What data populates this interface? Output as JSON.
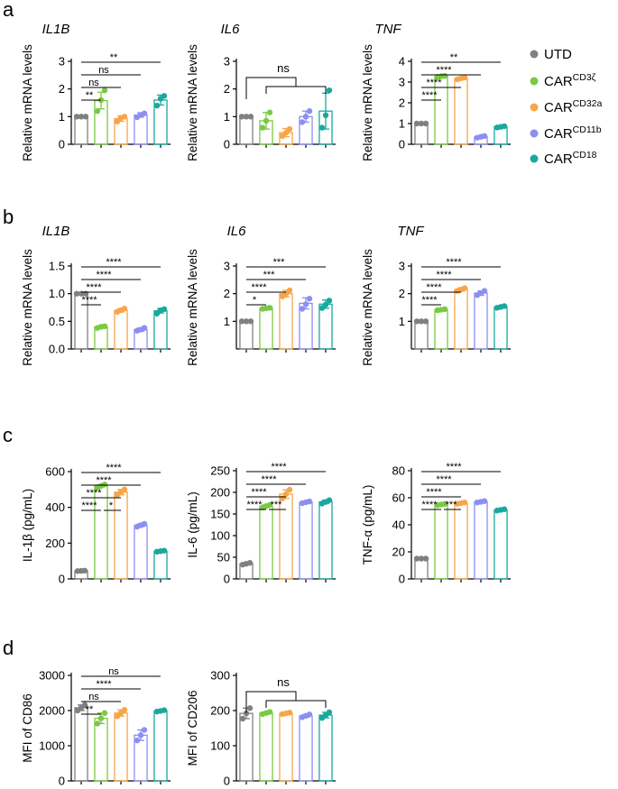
{
  "panel_letters": [
    "a",
    "b",
    "c",
    "d"
  ],
  "legend": [
    {
      "label": "UTD",
      "sup": "",
      "color": "#808080"
    },
    {
      "label": "CAR",
      "sup": "CD3ζ",
      "color": "#7ac943"
    },
    {
      "label": "CAR",
      "sup": "CD32a",
      "color": "#f7a54a"
    },
    {
      "label": "CAR",
      "sup": "CD11b",
      "color": "#8c8ff2"
    },
    {
      "label": "CAR",
      "sup": "CD18",
      "color": "#1aa89e"
    }
  ],
  "chart_data": [
    {
      "id": "a1",
      "type": "bar",
      "title": "IL1B",
      "ylabel": "Relative mRNA levels",
      "ylim": [
        0,
        3
      ],
      "yticks": [
        0,
        1,
        2,
        3
      ],
      "groups": [
        "UTD",
        "CAR-CD3ζ",
        "CAR-CD32a",
        "CAR-CD11b",
        "CAR-CD18"
      ],
      "values": [
        1.0,
        1.58,
        0.93,
        1.06,
        1.6
      ],
      "errors": [
        0.0,
        0.3,
        0.1,
        0.08,
        0.18
      ],
      "points": [
        [
          1,
          1,
          1
        ],
        [
          1.2,
          1.6,
          1.95
        ],
        [
          0.82,
          0.95,
          1.0
        ],
        [
          0.98,
          1.06,
          1.12
        ],
        [
          1.4,
          1.65,
          1.75
        ]
      ],
      "comparisons": [
        {
          "label": "**",
          "target": 4
        },
        {
          "label": "ns",
          "target": 3
        },
        {
          "label": "ns",
          "target": 2
        },
        {
          "label": "**",
          "target": 1
        }
      ]
    },
    {
      "id": "a2",
      "type": "bar",
      "title": "IL6",
      "ylabel": "Relative mRNA levels",
      "ylim": [
        0,
        3
      ],
      "yticks": [
        0,
        1,
        2,
        3
      ],
      "groups": [
        "UTD",
        "CAR-CD3ζ",
        "CAR-CD32a",
        "CAR-CD11b",
        "CAR-CD18"
      ],
      "values": [
        1.0,
        0.85,
        0.42,
        1.0,
        1.2
      ],
      "errors": [
        0.0,
        0.3,
        0.15,
        0.2,
        0.65
      ],
      "points": [
        [
          1,
          1,
          1
        ],
        [
          0.6,
          0.85,
          1.15
        ],
        [
          0.3,
          0.42,
          0.55
        ],
        [
          0.8,
          1.0,
          1.2
        ],
        [
          0.6,
          1.05,
          1.95
        ]
      ],
      "bracket": {
        "label": "ns"
      }
    },
    {
      "id": "a3",
      "type": "bar",
      "title": "TNF",
      "ylabel": "Relative mRNA levels",
      "ylim": [
        0,
        4
      ],
      "yticks": [
        0,
        1,
        2,
        3,
        4
      ],
      "groups": [
        "UTD",
        "CAR-CD3ζ",
        "CAR-CD32a",
        "CAR-CD11b",
        "CAR-CD18"
      ],
      "values": [
        1.0,
        3.28,
        3.18,
        0.36,
        0.84
      ],
      "errors": [
        0.0,
        0.03,
        0.05,
        0.05,
        0.04
      ],
      "points": [
        [
          1,
          1,
          1
        ],
        [
          3.25,
          3.28,
          3.3
        ],
        [
          3.13,
          3.18,
          3.22
        ],
        [
          0.32,
          0.36,
          0.4
        ],
        [
          0.81,
          0.84,
          0.87
        ]
      ],
      "comparisons": [
        {
          "label": "**",
          "target": 4
        },
        {
          "label": "****",
          "target": 3
        },
        {
          "label": "****",
          "target": 2
        },
        {
          "label": "****",
          "target": 1
        }
      ]
    },
    {
      "id": "b1",
      "type": "bar",
      "title": "IL1B",
      "ylabel": "Relative mRNA levels",
      "ylim": [
        0,
        1.5
      ],
      "yticks": [
        0.0,
        0.5,
        1.0,
        1.5
      ],
      "decimals": 1,
      "groups": [
        "UTD",
        "CAR-CD3ζ",
        "CAR-CD32a",
        "CAR-CD11b",
        "CAR-CD18"
      ],
      "values": [
        1.0,
        0.4,
        0.7,
        0.35,
        0.69
      ],
      "errors": [
        0.0,
        0.02,
        0.03,
        0.03,
        0.04
      ],
      "points": [
        [
          1,
          1,
          1
        ],
        [
          0.38,
          0.4,
          0.41
        ],
        [
          0.67,
          0.7,
          0.73
        ],
        [
          0.33,
          0.35,
          0.38
        ],
        [
          0.64,
          0.7,
          0.72
        ]
      ],
      "comparisons": [
        {
          "label": "****",
          "target": 4
        },
        {
          "label": "****",
          "target": 3
        },
        {
          "label": "****",
          "target": 2
        },
        {
          "label": "****",
          "target": 1
        }
      ]
    },
    {
      "id": "b2",
      "type": "bar",
      "title": "IL6",
      "ylabel": "Relative mRNA levels",
      "ylim": [
        0,
        3
      ],
      "yticks": [
        1,
        2,
        3
      ],
      "groups": [
        "UTD",
        "CAR-CD3ζ",
        "CAR-CD32a",
        "CAR-CD11b",
        "CAR-CD18"
      ],
      "values": [
        1.0,
        1.47,
        2.0,
        1.65,
        1.62
      ],
      "errors": [
        0.0,
        0.03,
        0.12,
        0.2,
        0.15
      ],
      "points": [
        [
          1,
          1,
          1
        ],
        [
          1.45,
          1.47,
          1.49
        ],
        [
          1.9,
          2.0,
          2.12
        ],
        [
          1.45,
          1.62,
          1.82
        ],
        [
          1.48,
          1.6,
          1.75
        ]
      ],
      "comparisons": [
        {
          "label": "***",
          "target": 4
        },
        {
          "label": "***",
          "target": 3
        },
        {
          "label": "****",
          "target": 2
        },
        {
          "label": "*",
          "target": 1
        }
      ]
    },
    {
      "id": "b3",
      "type": "bar",
      "title": "TNF",
      "ylabel": "Relative mRNA levels",
      "ylim": [
        0,
        3
      ],
      "yticks": [
        1,
        2,
        3
      ],
      "groups": [
        "UTD",
        "CAR-CD3ζ",
        "CAR-CD32a",
        "CAR-CD11b",
        "CAR-CD18"
      ],
      "values": [
        1.0,
        1.42,
        2.15,
        2.02,
        1.52
      ],
      "errors": [
        0.0,
        0.03,
        0.06,
        0.08,
        0.04
      ],
      "points": [
        [
          1,
          1,
          1
        ],
        [
          1.4,
          1.42,
          1.44
        ],
        [
          2.1,
          2.15,
          2.2
        ],
        [
          1.95,
          2.02,
          2.1
        ],
        [
          1.49,
          1.52,
          1.55
        ]
      ],
      "comparisons": [
        {
          "label": "****",
          "target": 4
        },
        {
          "label": "****",
          "target": 3
        },
        {
          "label": "****",
          "target": 2
        },
        {
          "label": "****",
          "target": 1
        }
      ]
    },
    {
      "id": "c1",
      "type": "bar",
      "title": "",
      "ylabel": "IL-1β (pg/mL)",
      "ylim": [
        0,
        600
      ],
      "yticks": [
        0,
        200,
        400,
        600
      ],
      "groups": [
        "UTD",
        "CAR-CD3ζ",
        "CAR-CD32a",
        "CAR-CD11b",
        "CAR-CD18"
      ],
      "values": [
        45,
        520,
        485,
        300,
        155
      ],
      "errors": [
        2,
        6,
        15,
        8,
        3
      ],
      "points": [
        [
          44,
          45,
          46
        ],
        [
          512,
          520,
          528
        ],
        [
          470,
          485,
          500
        ],
        [
          292,
          300,
          308
        ],
        [
          152,
          155,
          158
        ]
      ],
      "comparisons": [
        {
          "label": "****",
          "target": 4
        },
        {
          "label": "****",
          "target": 3
        },
        {
          "label": "****",
          "target": 2
        },
        {
          "label": "****",
          "target": 1
        }
      ],
      "extra": {
        "label": "*",
        "from": 1,
        "to": 2
      }
    },
    {
      "id": "c2",
      "type": "bar",
      "title": "",
      "ylabel": "IL-6 (pg/mL)",
      "ylim": [
        0,
        250
      ],
      "yticks": [
        0,
        50,
        100,
        150,
        200,
        250
      ],
      "groups": [
        "UTD",
        "CAR-CD3ζ",
        "CAR-CD32a",
        "CAR-CD11b",
        "CAR-CD18"
      ],
      "values": [
        35,
        168,
        196,
        177,
        178
      ],
      "errors": [
        2,
        3,
        10,
        2,
        4
      ],
      "points": [
        [
          33,
          35,
          37
        ],
        [
          165,
          168,
          171
        ],
        [
          186,
          196,
          206
        ],
        [
          175,
          177,
          179
        ],
        [
          174,
          178,
          182
        ]
      ],
      "comparisons": [
        {
          "label": "****",
          "target": 4
        },
        {
          "label": "****",
          "target": 3
        },
        {
          "label": "****",
          "target": 2
        },
        {
          "label": "****",
          "target": 1
        }
      ],
      "extra": {
        "label": "***",
        "from": 1,
        "to": 2
      }
    },
    {
      "id": "c3",
      "type": "bar",
      "title": "",
      "ylabel": "TNF-α (pg/mL)",
      "ylim": [
        0,
        80
      ],
      "yticks": [
        0,
        20,
        40,
        60,
        80
      ],
      "groups": [
        "UTD",
        "CAR-CD3ζ",
        "CAR-CD32a",
        "CAR-CD11b",
        "CAR-CD18"
      ],
      "values": [
        15,
        55,
        56,
        57,
        51
      ],
      "errors": [
        0.3,
        0.6,
        0.5,
        0.4,
        0.6
      ],
      "points": [
        [
          15,
          15,
          15
        ],
        [
          54.5,
          55,
          55.5
        ],
        [
          55.5,
          56,
          56.5
        ],
        [
          56.5,
          57,
          57.5
        ],
        [
          50.5,
          51,
          51.5
        ]
      ],
      "comparisons": [
        {
          "label": "****",
          "target": 4
        },
        {
          "label": "****",
          "target": 3
        },
        {
          "label": "****",
          "target": 2
        },
        {
          "label": "****",
          "target": 1
        }
      ],
      "extra": {
        "label": "***",
        "from": 1,
        "to": 2
      }
    },
    {
      "id": "d1",
      "type": "bar",
      "title": "",
      "ylabel": "MFI of CD86",
      "ylim": [
        0,
        3000
      ],
      "yticks": [
        0,
        1000,
        2000,
        3000
      ],
      "groups": [
        "UTD",
        "CAR-CD3ζ",
        "CAR-CD32a",
        "CAR-CD11b",
        "CAR-CD18"
      ],
      "values": [
        2080,
        1780,
        1930,
        1300,
        1990
      ],
      "errors": [
        80,
        150,
        90,
        150,
        20
      ],
      "points": [
        [
          2000,
          2080,
          2160
        ],
        [
          1630,
          1780,
          1930
        ],
        [
          1840,
          1930,
          2020
        ],
        [
          1150,
          1300,
          1450
        ],
        [
          1970,
          1990,
          2010
        ]
      ],
      "comparisons": [
        {
          "label": "ns",
          "target": 4
        },
        {
          "label": "****",
          "target": 3
        },
        {
          "label": "ns",
          "target": 2
        },
        {
          "label": "**",
          "target": 1
        }
      ]
    },
    {
      "id": "d2",
      "type": "bar",
      "title": "",
      "ylabel": "MFI of CD206",
      "ylim": [
        0,
        300
      ],
      "yticks": [
        0,
        100,
        200,
        300
      ],
      "groups": [
        "UTD",
        "CAR-CD3ζ",
        "CAR-CD32a",
        "CAR-CD11b",
        "CAR-CD18"
      ],
      "values": [
        192,
        193,
        192,
        185,
        187
      ],
      "errors": [
        15,
        3,
        2,
        4,
        8
      ],
      "points": [
        [
          177,
          192,
          207
        ],
        [
          190,
          193,
          196
        ],
        [
          190,
          192,
          194
        ],
        [
          181,
          185,
          189
        ],
        [
          179,
          187,
          195
        ]
      ],
      "bracket": {
        "label": "ns"
      }
    }
  ]
}
